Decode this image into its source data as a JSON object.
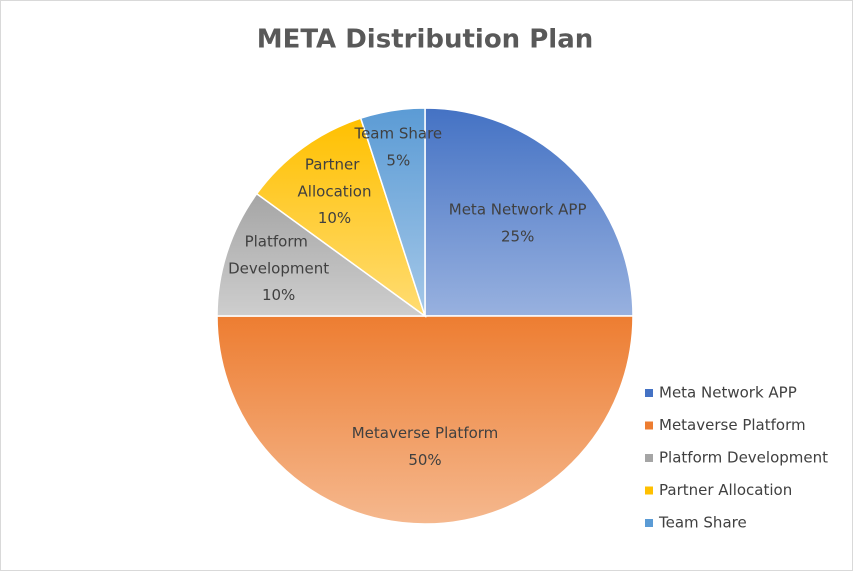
{
  "chart_data": {
    "type": "pie",
    "title": "META Distribution Plan",
    "categories": [
      "Meta Network APP",
      "Metaverse Platform",
      "Platform Development",
      "Partner Allocation",
      "Team Share"
    ],
    "values": [
      25,
      50,
      10,
      10,
      5
    ],
    "value_labels": [
      "25%",
      "50%",
      "10%",
      "10%",
      "5%"
    ],
    "colors": [
      "#4472c4",
      "#ed7d31",
      "#a5a5a5",
      "#ffc000",
      "#5b9bd5"
    ],
    "legend": "right"
  }
}
